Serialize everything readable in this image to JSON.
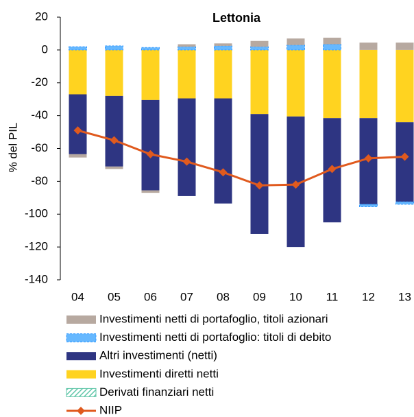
{
  "chart_data": {
    "type": "bar",
    "stacked": true,
    "title": "Lettonia",
    "y_label": "% del PIL",
    "categories": [
      "04",
      "05",
      "06",
      "07",
      "08",
      "09",
      "10",
      "11",
      "12",
      "13"
    ],
    "ylim": [
      -140,
      20
    ],
    "yticks": [
      -140,
      -120,
      -100,
      -80,
      -60,
      -40,
      -20,
      0,
      20
    ],
    "series": [
      {
        "name": "Investimenti diretti netti",
        "color": "#ffd320",
        "values": [
          -27,
          -28,
          -30.5,
          -29.5,
          -29.5,
          -39,
          -40.5,
          -41.5,
          -41.5,
          -44
        ]
      },
      {
        "name": "Derivati finanziari netti",
        "color": "#5fc6a8",
        "values": [
          0,
          0,
          0,
          0,
          0,
          0,
          0,
          0,
          0,
          0
        ]
      },
      {
        "name": "Altri investimenti (netti)",
        "color": "#2e3582",
        "values": [
          -36.5,
          -43,
          -55,
          -59.5,
          -64,
          -73,
          -79.5,
          -63.5,
          -52.5,
          -48.5
        ]
      },
      {
        "name": "Investimenti netti di portafoglio: titoli di debito",
        "color": "#3399ff",
        "values": [
          2,
          2.5,
          1.5,
          2,
          2.5,
          2,
          3,
          3.5,
          -1.5,
          -1.5
        ]
      },
      {
        "name": "Investimenti netti di portafoglio, titoli azionari",
        "color": "#b7a9a0",
        "values": [
          -2,
          -1.5,
          -1.5,
          1.5,
          1.5,
          3.5,
          4,
          4,
          4.5,
          4.5
        ]
      },
      {
        "name": "NIIP",
        "type": "line",
        "color": "#e05a1e",
        "values": [
          -49,
          -55,
          -63.5,
          -68,
          -74.5,
          -82.5,
          -82,
          -72.5,
          -66,
          -65
        ]
      }
    ]
  }
}
